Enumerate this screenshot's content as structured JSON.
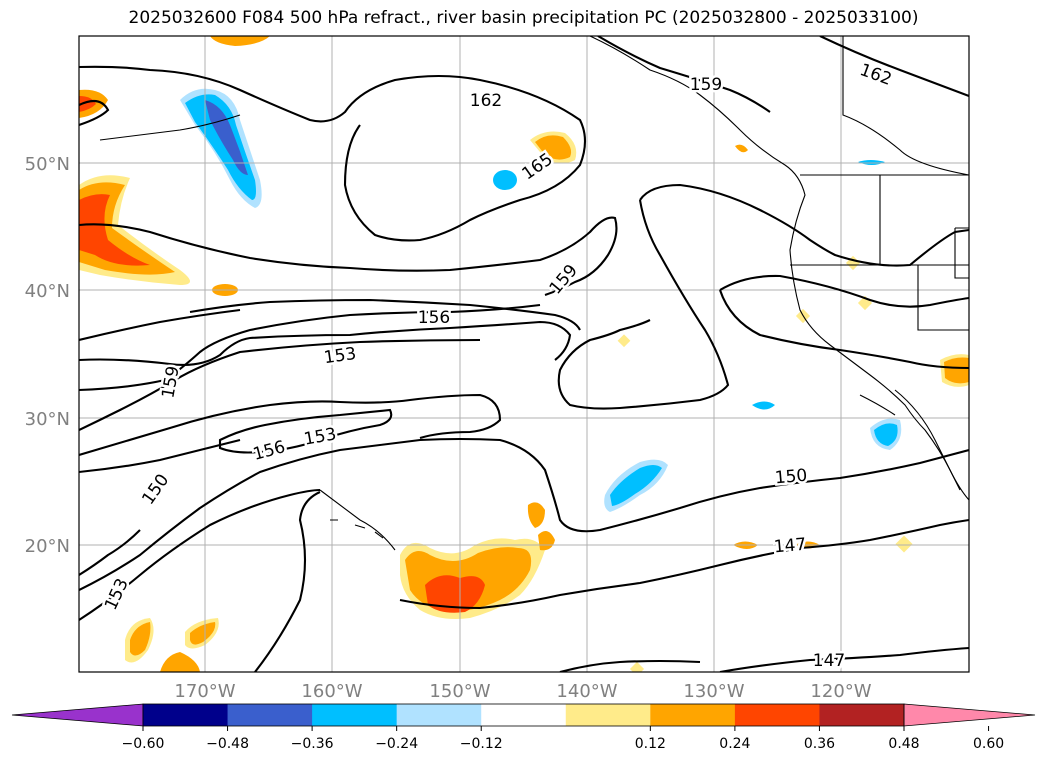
{
  "title": "2025032600 F084 500 hPa refract., river basin precipitation PC (2025032800 - 2025033100)",
  "map": {
    "lat_labels": [
      "50°N",
      "40°N",
      "30°N",
      "20°N"
    ],
    "lon_labels": [
      "170°W",
      "160°W",
      "150°W",
      "140°W",
      "130°W",
      "120°W"
    ],
    "axis_label_color": "#808080",
    "grid_color": "#b0b0b0"
  },
  "contour_labels": [
    "162",
    "162",
    "159",
    "165",
    "159",
    "156",
    "153",
    "159",
    "156",
    "153",
    "150",
    "153",
    "150",
    "147",
    "147"
  ],
  "colorbar": {
    "colors": [
      "#9932cc",
      "#00008b",
      "#3a5fcd",
      "#00bfff",
      "#b0e2ff",
      "#ffffff",
      "#ffeb8a",
      "#ffa500",
      "#ff4500",
      "#b22222",
      "#ff88aa"
    ],
    "ticks": [
      "−0.60",
      "−0.48",
      "−0.36",
      "−0.24",
      "−0.12",
      "0.12",
      "0.24",
      "0.36",
      "0.48",
      "0.60"
    ]
  }
}
